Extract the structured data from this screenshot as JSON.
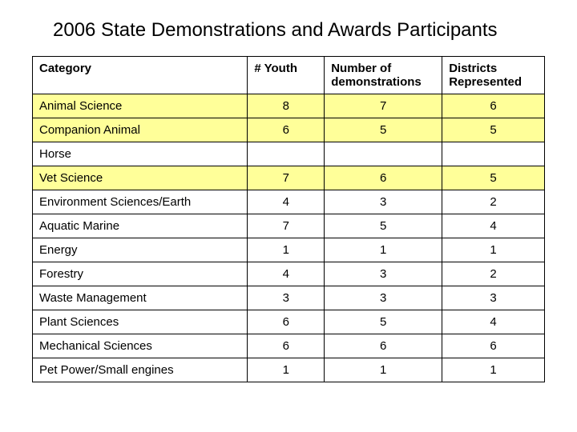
{
  "title": "2006 State Demonstrations and Awards Participants",
  "table": {
    "columns": [
      "Category",
      "# Youth",
      "Number of demonstrations",
      "Districts Represented"
    ],
    "column_widths_pct": [
      42,
      15,
      23,
      20
    ],
    "highlight_color": "#ffff99",
    "border_color": "#000000",
    "background_color": "#ffffff",
    "title_fontsize": 24,
    "cell_fontsize": 15,
    "rows": [
      {
        "category": "Animal Science",
        "youth": 8,
        "demos": 7,
        "districts": 6,
        "highlight": true
      },
      {
        "category": "Companion Animal",
        "youth": 6,
        "demos": 5,
        "districts": 5,
        "highlight": true
      },
      {
        "category": "Horse",
        "youth": "",
        "demos": "",
        "districts": "",
        "highlight": false
      },
      {
        "category": "Vet Science",
        "youth": 7,
        "demos": 6,
        "districts": 5,
        "highlight": true
      },
      {
        "category": "Environment Sciences/Earth",
        "youth": 4,
        "demos": 3,
        "districts": 2,
        "highlight": false
      },
      {
        "category": "Aquatic Marine",
        "youth": 7,
        "demos": 5,
        "districts": 4,
        "highlight": false
      },
      {
        "category": "Energy",
        "youth": 1,
        "demos": 1,
        "districts": 1,
        "highlight": false
      },
      {
        "category": "Forestry",
        "youth": 4,
        "demos": 3,
        "districts": 2,
        "highlight": false
      },
      {
        "category": "Waste Management",
        "youth": 3,
        "demos": 3,
        "districts": 3,
        "highlight": false
      },
      {
        "category": "Plant Sciences",
        "youth": 6,
        "demos": 5,
        "districts": 4,
        "highlight": false
      },
      {
        "category": "Mechanical Sciences",
        "youth": 6,
        "demos": 6,
        "districts": 6,
        "highlight": false
      },
      {
        "category": "Pet Power/Small engines",
        "youth": 1,
        "demos": 1,
        "districts": 1,
        "highlight": false
      }
    ]
  }
}
